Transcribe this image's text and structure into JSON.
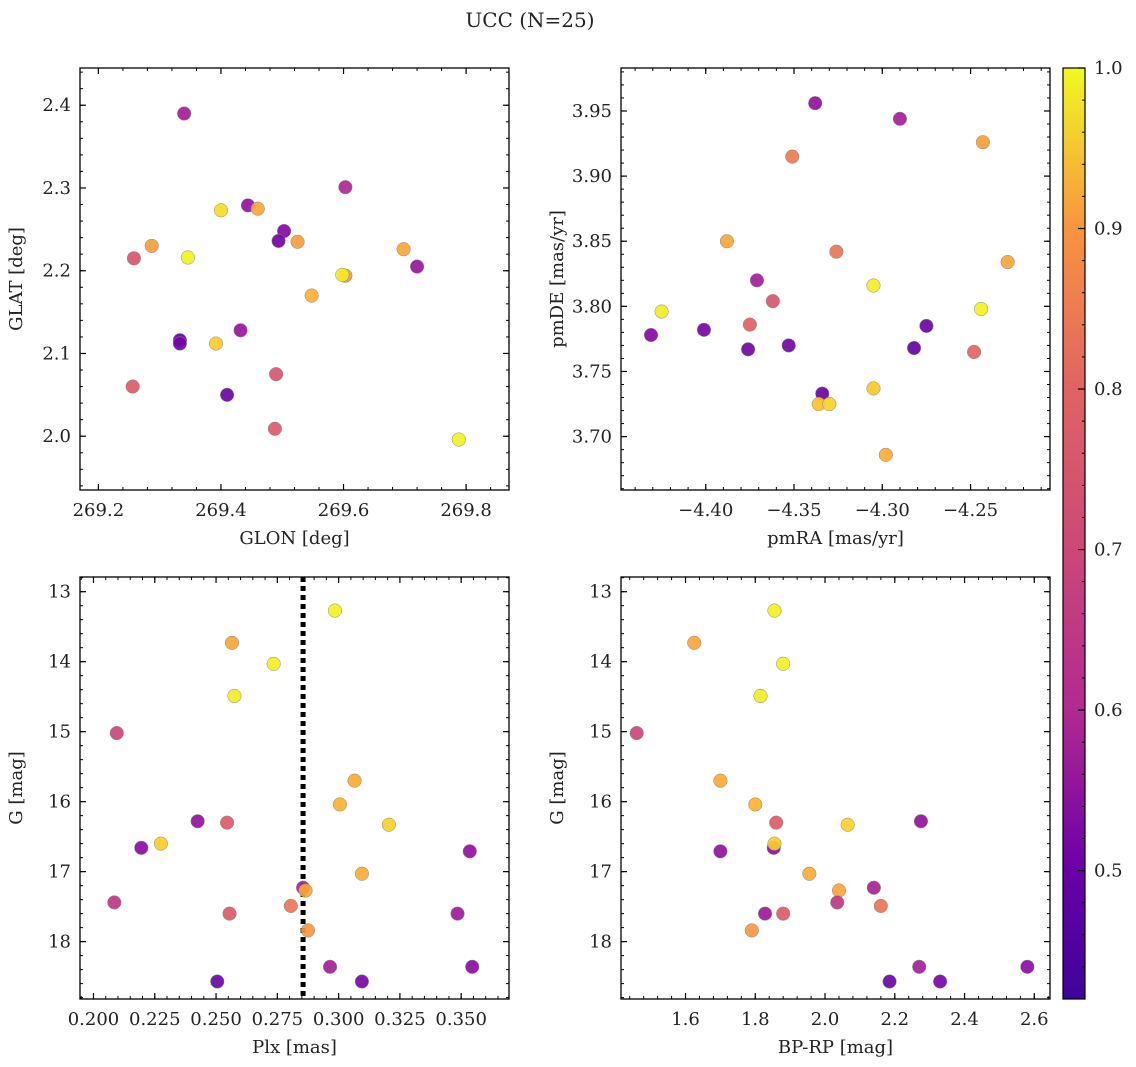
{
  "figure": {
    "title": "UCC (N=25)"
  },
  "colorbar": {
    "colormap": "plasma",
    "min": 0.42,
    "max": 1.0,
    "ticks": [
      "0.5",
      "0.6",
      "0.7",
      "0.8",
      "0.9",
      "1.0"
    ]
  },
  "chart_data": [
    {
      "type": "scatter",
      "xlabel": "GLON [deg]",
      "ylabel": "GLAT [deg]",
      "xlim": [
        269.17,
        269.87
      ],
      "ylim": [
        1.935,
        2.445
      ],
      "xticks": [
        "269.2",
        "269.4",
        "269.6",
        "269.8"
      ],
      "yticks": [
        "2.0",
        "2.1",
        "2.2",
        "2.3",
        "2.4"
      ],
      "points": [
        {
          "x": 269.34,
          "y": 2.39,
          "c": 0.55
        },
        {
          "x": 269.603,
          "y": 2.301,
          "c": 0.57
        },
        {
          "x": 269.444,
          "y": 2.279,
          "c": 0.52
        },
        {
          "x": 269.46,
          "y": 2.275,
          "c": 0.8
        },
        {
          "x": 269.4,
          "y": 2.273,
          "c": 0.92
        },
        {
          "x": 269.503,
          "y": 2.248,
          "c": 0.5
        },
        {
          "x": 269.494,
          "y": 2.236,
          "c": 0.47
        },
        {
          "x": 269.525,
          "y": 2.235,
          "c": 0.79
        },
        {
          "x": 269.287,
          "y": 2.23,
          "c": 0.79
        },
        {
          "x": 269.698,
          "y": 2.226,
          "c": 0.8
        },
        {
          "x": 269.258,
          "y": 2.215,
          "c": 0.66
        },
        {
          "x": 269.346,
          "y": 2.216,
          "c": 0.98
        },
        {
          "x": 269.72,
          "y": 2.205,
          "c": 0.53
        },
        {
          "x": 269.603,
          "y": 2.194,
          "c": 0.78
        },
        {
          "x": 269.598,
          "y": 2.195,
          "c": 0.96
        },
        {
          "x": 269.548,
          "y": 2.17,
          "c": 0.82
        },
        {
          "x": 269.432,
          "y": 2.128,
          "c": 0.53
        },
        {
          "x": 269.333,
          "y": 2.116,
          "c": 0.45
        },
        {
          "x": 269.333,
          "y": 2.112,
          "c": 0.47
        },
        {
          "x": 269.392,
          "y": 2.112,
          "c": 0.88
        },
        {
          "x": 269.256,
          "y": 2.06,
          "c": 0.67
        },
        {
          "x": 269.41,
          "y": 2.05,
          "c": 0.46
        },
        {
          "x": 269.49,
          "y": 2.075,
          "c": 0.66
        },
        {
          "x": 269.488,
          "y": 2.009,
          "c": 0.67
        },
        {
          "x": 269.788,
          "y": 1.996,
          "c": 0.98
        }
      ]
    },
    {
      "type": "scatter",
      "xlabel": "pmRA [mas/yr]",
      "ylabel": "pmDE [mas/yr]",
      "xlim": [
        -4.448,
        -4.205
      ],
      "ylim": [
        3.659,
        3.983
      ],
      "xticks": [
        "−4.40",
        "−4.35",
        "−4.30",
        "−4.25"
      ],
      "yticks": [
        "3.70",
        "3.75",
        "3.80",
        "3.85",
        "3.90",
        "3.95"
      ],
      "points": [
        {
          "x": -4.338,
          "y": 3.956,
          "c": 0.52
        },
        {
          "x": -4.29,
          "y": 3.944,
          "c": 0.55
        },
        {
          "x": -4.243,
          "y": 3.926,
          "c": 0.79
        },
        {
          "x": -4.351,
          "y": 3.915,
          "c": 0.73
        },
        {
          "x": -4.388,
          "y": 3.85,
          "c": 0.8
        },
        {
          "x": -4.326,
          "y": 3.842,
          "c": 0.72
        },
        {
          "x": -4.229,
          "y": 3.834,
          "c": 0.8
        },
        {
          "x": -4.371,
          "y": 3.82,
          "c": 0.55
        },
        {
          "x": -4.305,
          "y": 3.816,
          "c": 0.97
        },
        {
          "x": -4.362,
          "y": 3.804,
          "c": 0.66
        },
        {
          "x": -4.244,
          "y": 3.798,
          "c": 0.98
        },
        {
          "x": -4.425,
          "y": 3.796,
          "c": 0.96
        },
        {
          "x": -4.375,
          "y": 3.786,
          "c": 0.68
        },
        {
          "x": -4.275,
          "y": 3.785,
          "c": 0.46
        },
        {
          "x": -4.401,
          "y": 3.782,
          "c": 0.48
        },
        {
          "x": -4.431,
          "y": 3.778,
          "c": 0.5
        },
        {
          "x": -4.353,
          "y": 3.77,
          "c": 0.47
        },
        {
          "x": -4.282,
          "y": 3.768,
          "c": 0.45
        },
        {
          "x": -4.376,
          "y": 3.767,
          "c": 0.47
        },
        {
          "x": -4.248,
          "y": 3.765,
          "c": 0.69
        },
        {
          "x": -4.305,
          "y": 3.737,
          "c": 0.87
        },
        {
          "x": -4.334,
          "y": 3.733,
          "c": 0.46
        },
        {
          "x": -4.336,
          "y": 3.725,
          "c": 0.85
        },
        {
          "x": -4.33,
          "y": 3.725,
          "c": 0.9
        },
        {
          "x": -4.298,
          "y": 3.686,
          "c": 0.81
        }
      ]
    },
    {
      "type": "scatter",
      "xlabel": "Plx [mas]",
      "ylabel": "G [mag]",
      "xlim": [
        0.1945,
        0.3695
      ],
      "ylim": [
        18.82,
        12.79
      ],
      "y_inverted": true,
      "xticks": [
        "0.200",
        "0.225",
        "0.250",
        "0.275",
        "0.300",
        "0.325",
        "0.350"
      ],
      "yticks": [
        "13",
        "14",
        "15",
        "16",
        "17",
        "18"
      ],
      "vline": {
        "x": 0.2855,
        "style": "dotted"
      },
      "points": [
        {
          "x": 0.2985,
          "y": 13.27,
          "c": 0.98
        },
        {
          "x": 0.2565,
          "y": 13.73,
          "c": 0.8
        },
        {
          "x": 0.2735,
          "y": 14.03,
          "c": 0.98
        },
        {
          "x": 0.2575,
          "y": 14.49,
          "c": 0.96
        },
        {
          "x": 0.2095,
          "y": 15.02,
          "c": 0.63
        },
        {
          "x": 0.3065,
          "y": 15.7,
          "c": 0.81
        },
        {
          "x": 0.3005,
          "y": 16.04,
          "c": 0.82
        },
        {
          "x": 0.3205,
          "y": 16.33,
          "c": 0.89
        },
        {
          "x": 0.2425,
          "y": 16.28,
          "c": 0.52
        },
        {
          "x": 0.2545,
          "y": 16.3,
          "c": 0.67
        },
        {
          "x": 0.2195,
          "y": 16.66,
          "c": 0.51
        },
        {
          "x": 0.2275,
          "y": 16.6,
          "c": 0.88
        },
        {
          "x": 0.3535,
          "y": 16.71,
          "c": 0.52
        },
        {
          "x": 0.3095,
          "y": 17.03,
          "c": 0.81
        },
        {
          "x": 0.2855,
          "y": 17.23,
          "c": 0.56
        },
        {
          "x": 0.2865,
          "y": 17.27,
          "c": 0.8
        },
        {
          "x": 0.2085,
          "y": 17.44,
          "c": 0.6
        },
        {
          "x": 0.2805,
          "y": 17.49,
          "c": 0.72
        },
        {
          "x": 0.2555,
          "y": 17.6,
          "c": 0.67
        },
        {
          "x": 0.3485,
          "y": 17.6,
          "c": 0.54
        },
        {
          "x": 0.2875,
          "y": 17.84,
          "c": 0.78
        },
        {
          "x": 0.2965,
          "y": 18.36,
          "c": 0.55
        },
        {
          "x": 0.3545,
          "y": 18.36,
          "c": 0.51
        },
        {
          "x": 0.2505,
          "y": 18.57,
          "c": 0.46
        },
        {
          "x": 0.3095,
          "y": 18.57,
          "c": 0.48
        }
      ]
    },
    {
      "type": "scatter",
      "xlabel": "BP-RP [mag]",
      "ylabel": "G [mag]",
      "xlim": [
        1.415,
        2.645
      ],
      "ylim": [
        18.82,
        12.79
      ],
      "y_inverted": true,
      "xticks": [
        "1.6",
        "1.8",
        "2.0",
        "2.2",
        "2.4",
        "2.6"
      ],
      "yticks": [
        "13",
        "14",
        "15",
        "16",
        "17",
        "18"
      ],
      "points": [
        {
          "x": 1.855,
          "y": 13.27,
          "c": 0.98
        },
        {
          "x": 1.625,
          "y": 13.73,
          "c": 0.8
        },
        {
          "x": 1.88,
          "y": 14.03,
          "c": 0.98
        },
        {
          "x": 1.815,
          "y": 14.49,
          "c": 0.96
        },
        {
          "x": 1.46,
          "y": 15.02,
          "c": 0.63
        },
        {
          "x": 1.7,
          "y": 15.7,
          "c": 0.81
        },
        {
          "x": 1.8,
          "y": 16.04,
          "c": 0.82
        },
        {
          "x": 1.86,
          "y": 16.3,
          "c": 0.67
        },
        {
          "x": 2.065,
          "y": 16.33,
          "c": 0.89
        },
        {
          "x": 2.275,
          "y": 16.28,
          "c": 0.52
        },
        {
          "x": 1.7,
          "y": 16.71,
          "c": 0.52
        },
        {
          "x": 1.853,
          "y": 16.66,
          "c": 0.51
        },
        {
          "x": 1.855,
          "y": 16.6,
          "c": 0.88
        },
        {
          "x": 1.955,
          "y": 17.03,
          "c": 0.81
        },
        {
          "x": 2.14,
          "y": 17.23,
          "c": 0.56
        },
        {
          "x": 2.04,
          "y": 17.27,
          "c": 0.8
        },
        {
          "x": 2.035,
          "y": 17.44,
          "c": 0.6
        },
        {
          "x": 2.16,
          "y": 17.49,
          "c": 0.72
        },
        {
          "x": 1.828,
          "y": 17.6,
          "c": 0.54
        },
        {
          "x": 1.88,
          "y": 17.6,
          "c": 0.67
        },
        {
          "x": 1.79,
          "y": 17.84,
          "c": 0.78
        },
        {
          "x": 2.27,
          "y": 18.36,
          "c": 0.55
        },
        {
          "x": 2.58,
          "y": 18.36,
          "c": 0.51
        },
        {
          "x": 2.185,
          "y": 18.57,
          "c": 0.46
        },
        {
          "x": 2.33,
          "y": 18.57,
          "c": 0.48
        }
      ]
    }
  ]
}
